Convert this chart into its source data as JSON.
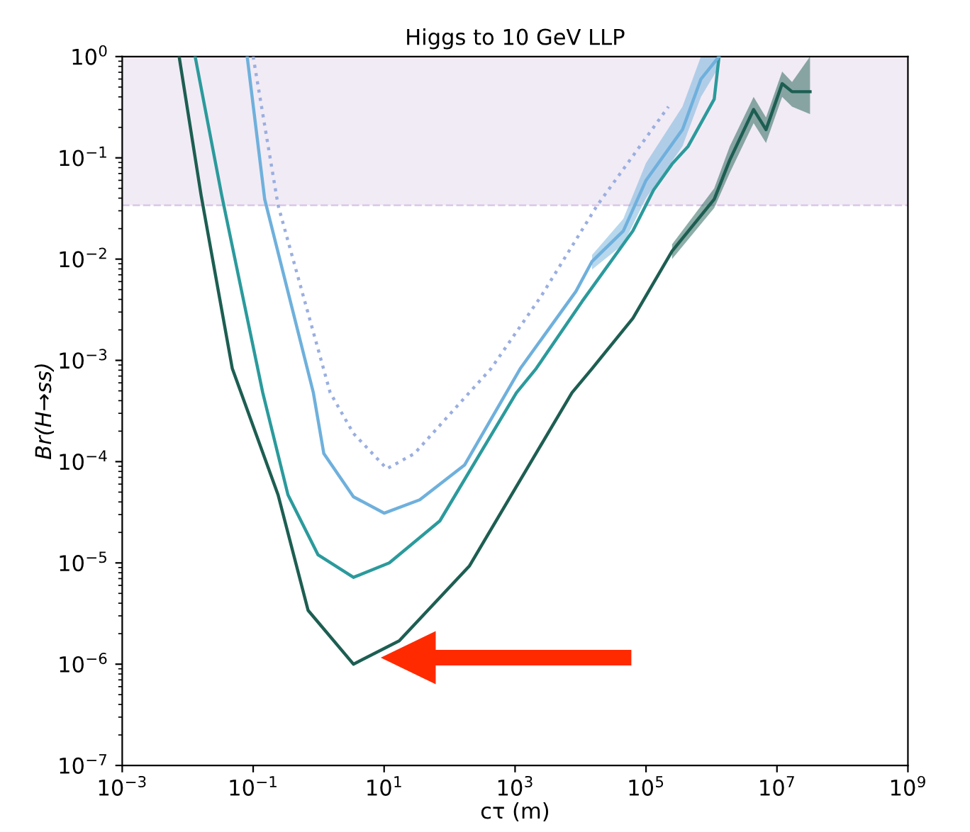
{
  "chart_data": {
    "type": "line",
    "title": "Higgs to 10 GeV LLP",
    "xlabel": "cτ (m)",
    "ylabel": "Br(H→ss)",
    "log": "xy",
    "grid": false,
    "marker": "none",
    "xlim": [
      0.001,
      1000000000
    ],
    "ylim": [
      1e-07,
      1
    ],
    "xticks": [
      {
        "value": 0.001,
        "label": "10$^{−3}$"
      },
      {
        "value": 0.1,
        "label": "10$^{−1}$"
      },
      {
        "value": 10,
        "label": "10$^{1}$"
      },
      {
        "value": 1000,
        "label": "10$^{3}$"
      },
      {
        "value": 100000,
        "label": "10$^{5}$"
      },
      {
        "value": 10000000,
        "label": "10$^{7}$"
      },
      {
        "value": 1000000000,
        "label": "10$^{9}$"
      }
    ],
    "yticks": [
      {
        "value": 1e-07,
        "label": "10$^{−7}$"
      },
      {
        "value": 1e-06,
        "label": "10$^{−6}$"
      },
      {
        "value": 1e-05,
        "label": "10$^{−5}$"
      },
      {
        "value": 0.0001,
        "label": "10$^{−4}$"
      },
      {
        "value": 0.001,
        "label": "10$^{−3}$"
      },
      {
        "value": 0.01,
        "label": "10$^{−2}$"
      },
      {
        "value": 0.1,
        "label": "10$^{−1}$"
      },
      {
        "value": 1,
        "label": "10$^{0}$"
      }
    ],
    "bands": [
      {
        "axis": "y",
        "from": 0.034,
        "to": 1,
        "color": "#f1ebf5"
      }
    ],
    "ref_lines": [
      {
        "axis": "y",
        "value": 0.034,
        "color": "#dccbe8",
        "line_style": "dashed"
      }
    ],
    "series": [
      {
        "color": "#1d5e52",
        "line_style": "solid",
        "x": [
          0.0074,
          0.016,
          0.048,
          0.24,
          0.69,
          3.4,
          17,
          200,
          7400,
          15000,
          63000,
          250000,
          1100000,
          1900000,
          4400000,
          6800000,
          12000000,
          17000000,
          32000000
        ],
        "values": [
          1.0,
          0.043,
          0.00083,
          4.7e-05,
          3.4e-06,
          1e-06,
          1.7e-06,
          9.3e-06,
          0.00048,
          0.00083,
          0.0026,
          0.012,
          0.039,
          0.095,
          0.3,
          0.19,
          0.54,
          0.45,
          0.45
        ],
        "lower": [
          null,
          null,
          null,
          null,
          null,
          null,
          null,
          null,
          null,
          null,
          null,
          0.01,
          0.032,
          0.071,
          0.22,
          0.14,
          0.4,
          0.32,
          0.27
        ],
        "upper": [
          null,
          null,
          null,
          null,
          null,
          null,
          null,
          null,
          null,
          null,
          null,
          0.014,
          0.05,
          0.13,
          0.4,
          0.25,
          0.71,
          0.56,
          1.0
        ]
      },
      {
        "color": "#2b9a9c",
        "line_style": "solid",
        "x": [
          0.013,
          0.033,
          0.14,
          0.34,
          0.98,
          3.4,
          12,
          71,
          1050,
          2100,
          10500,
          63000,
          130000,
          250000,
          440000,
          1100000,
          1300000
        ],
        "values": [
          1.0,
          0.043,
          0.00048,
          4.7e-05,
          1.2e-05,
          7.2e-06,
          1e-05,
          2.6e-05,
          0.00048,
          0.00083,
          0.0038,
          0.019,
          0.048,
          0.087,
          0.13,
          0.38,
          0.98
        ]
      },
      {
        "color": "#6fb0dc",
        "line_style": "solid",
        "x": [
          0.081,
          0.15,
          0.83,
          1.2,
          3.4,
          10,
          35,
          170,
          1200,
          8500,
          15000,
          45000,
          100000,
          360000,
          690000,
          1300000
        ],
        "values": [
          1.0,
          0.039,
          0.00048,
          0.00012,
          4.5e-05,
          3.1e-05,
          4.2e-05,
          9.3e-05,
          0.00083,
          0.0048,
          0.0095,
          0.019,
          0.06,
          0.19,
          0.6,
          1.0
        ],
        "lower": [
          null,
          null,
          null,
          null,
          null,
          null,
          null,
          null,
          null,
          null,
          0.0079,
          0.014,
          0.04,
          0.13,
          0.4,
          0.79
        ],
        "upper": [
          null,
          null,
          null,
          null,
          null,
          null,
          null,
          null,
          null,
          null,
          0.011,
          0.025,
          0.089,
          0.32,
          1.0,
          1.0
        ]
      },
      {
        "color": "#9aaee0",
        "line_style": "dotted",
        "x": [
          0.1,
          0.24,
          1.5,
          3.4,
          11,
          29,
          200,
          430,
          2500,
          18000,
          220000
        ],
        "values": [
          1.0,
          0.034,
          0.00048,
          0.00019,
          8.5e-05,
          0.00012,
          0.00048,
          0.00083,
          0.0043,
          0.034,
          0.32
        ]
      }
    ]
  }
}
